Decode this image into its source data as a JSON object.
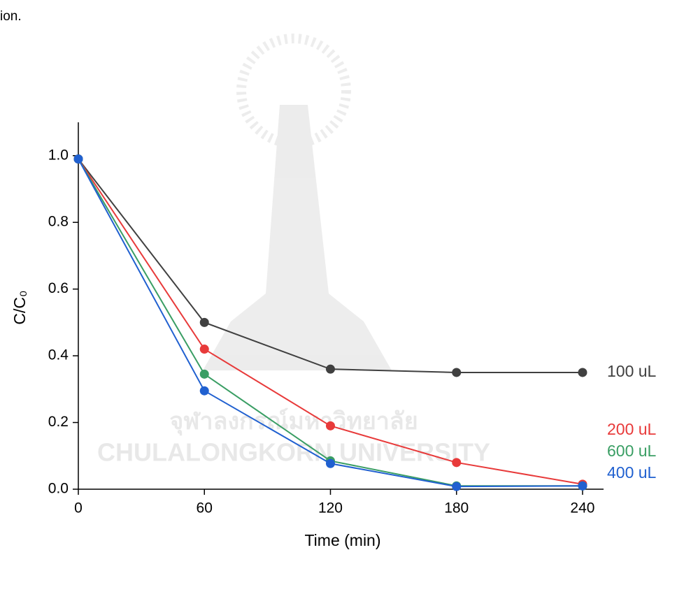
{
  "page_fragment": "ion.",
  "watermark": [
    "จุฬาลงกรณ์มหาวิทยาลัย",
    "CHULALONGKORN UNIVERSITY"
  ],
  "chart_data": {
    "type": "line",
    "x_label": "Time (min)",
    "y_label": "C/C₀",
    "x": [
      0,
      60,
      120,
      180,
      240
    ],
    "series": [
      {
        "name": "100 uL",
        "color": "#404040",
        "values": [
          0.99,
          0.5,
          0.36,
          0.35,
          0.35
        ]
      },
      {
        "name": "200 uL",
        "color": "#e83a3a",
        "values": [
          0.99,
          0.42,
          0.19,
          0.08,
          0.015
        ]
      },
      {
        "name": "600 uL",
        "color": "#3a9e64",
        "values": [
          0.99,
          0.345,
          0.085,
          0.01,
          0.01
        ]
      },
      {
        "name": "400 uL",
        "color": "#2060d0",
        "values": [
          0.99,
          0.295,
          0.077,
          0.008,
          0.01
        ]
      }
    ],
    "xlim": [
      0,
      250
    ],
    "ylim": [
      0,
      1.1
    ],
    "xticks": [
      0,
      60,
      120,
      180,
      240
    ],
    "yticks": [
      {
        "value": 0,
        "label": "0.0"
      },
      0.2,
      0.4,
      0.6,
      0.8,
      {
        "value": 1,
        "label": "1.0"
      }
    ]
  }
}
